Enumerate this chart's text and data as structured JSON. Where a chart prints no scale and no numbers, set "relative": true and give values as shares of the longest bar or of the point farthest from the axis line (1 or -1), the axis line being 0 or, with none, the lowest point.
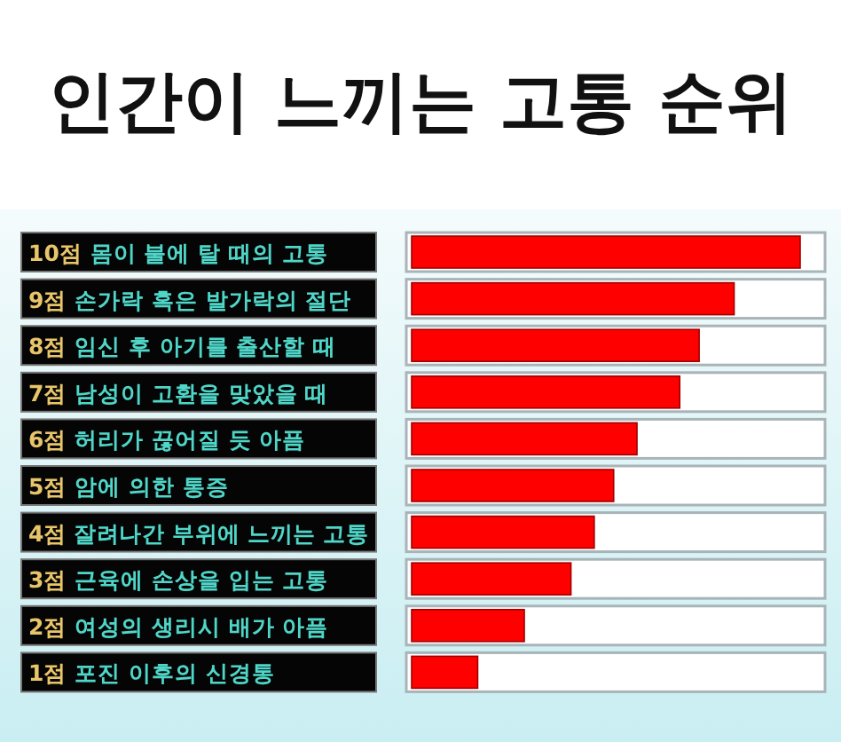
{
  "chart_data": {
    "type": "bar",
    "orientation": "horizontal",
    "relative": true,
    "title": "인간이 느끼는 고통 순위",
    "categories": [
      "10점 몸이 불에 탈 때의 고통",
      "9점 손가락 혹은 발가락의 절단",
      "8점 임신 후 아기를 출산할 때",
      "7점 남성이 고환을 맞았을 때",
      "6점 허리가 끊어질 듯 아픔",
      "5점 암에 의한 통증",
      "4점 잘려나간 부위에 느끼는 고통",
      "3점 근육에 손상을 입는 고통",
      "2점 여성의 생리시 배가 아픔",
      "1점 포진 이후의 신경통"
    ],
    "values": [
      1,
      0.83,
      0.74,
      0.69,
      0.58,
      0.52,
      0.47,
      0.41,
      0.29,
      0.17
    ],
    "color": "#ff0000"
  }
}
